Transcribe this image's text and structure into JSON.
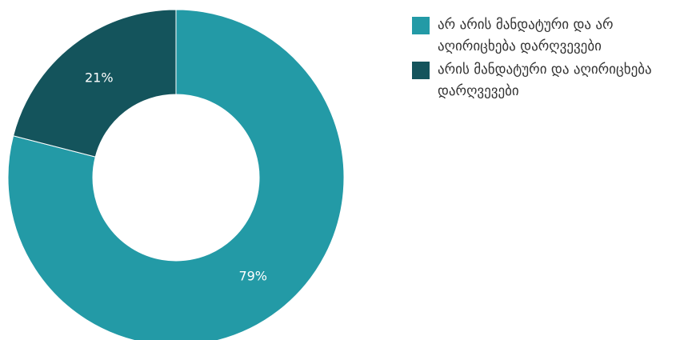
{
  "chart_data": {
    "type": "pie",
    "variant": "donut",
    "slices": [
      {
        "label": "არ არის მანდატური და არ აღირიცხება დარღვევები",
        "value": 79,
        "display": "79%",
        "color": "#239aa6"
      },
      {
        "label": "არის მანდატური და აღირიცხება დარღვევები",
        "value": 21,
        "display": "21%",
        "color": "#14545c"
      }
    ],
    "legend_position": "right"
  }
}
